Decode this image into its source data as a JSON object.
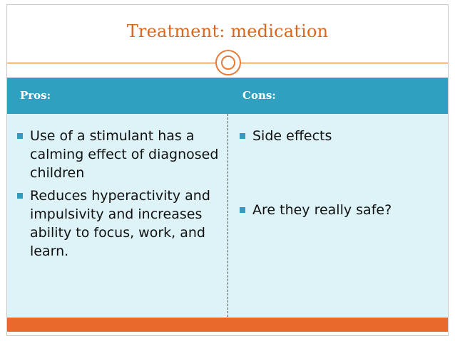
{
  "slide": {
    "title": "Treatment: medication",
    "table": {
      "headers": [
        "Pros:",
        "Cons:"
      ],
      "pros": [
        "Use of a stimulant has a calming effect of diagnosed children",
        "Reduces hyperactivity and impulsivity and increases ability to focus, work, and learn."
      ],
      "cons": [
        "Side effects",
        "Are they really safe?"
      ]
    },
    "colors": {
      "accent_orange": "#e8692a",
      "header_blue": "#30a0c0",
      "body_fill": "#ddf3f8",
      "title_color": "#d9661f"
    }
  }
}
